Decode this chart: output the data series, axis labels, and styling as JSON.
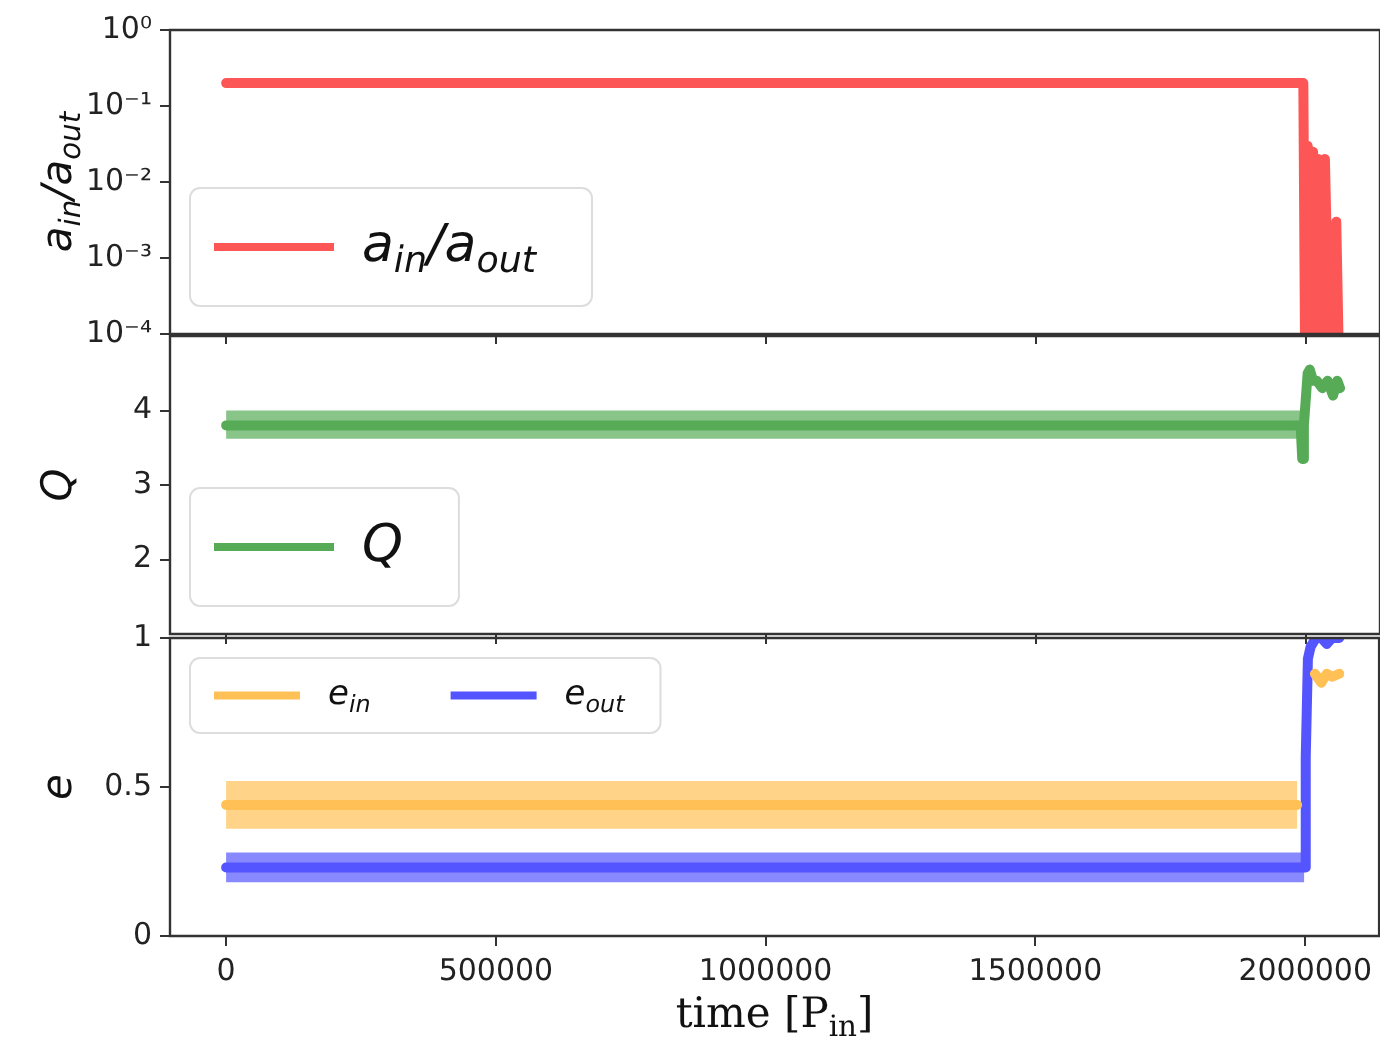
{
  "chart_data": [
    {
      "type": "line",
      "ylabel": "a$_{in}$/a$_{out}$",
      "log": true,
      "legend": "bottom left",
      "marker": "none",
      "tick_labels": "y",
      "xlim": [
        -104000,
        2137000
      ],
      "xticks": [
        0,
        500000,
        1000000,
        1500000,
        2000000
      ],
      "ylim": [
        0.0001,
        1
      ],
      "yticks": [
        {
          "value": 1,
          "label": "10⁰"
        },
        {
          "value": 0.1,
          "label": "10⁻¹"
        },
        {
          "value": 0.01,
          "label": "10⁻²"
        },
        {
          "value": 0.001,
          "label": "10⁻³"
        },
        {
          "value": 0.0001,
          "label": "10⁻⁴"
        }
      ],
      "series": [
        {
          "name": "a$_{in}$/a$_{out}$",
          "color": "#fd5656",
          "x": [
            0,
            1995000,
            1998000,
            2003000,
            2008000,
            2013000,
            2018000,
            2023000,
            2028000,
            2035000,
            2042000,
            2056000,
            2060000
          ],
          "values": [
            0.2,
            0.2,
            0.0001,
            0.03,
            0.0001,
            0.025,
            0.0001,
            0.02,
            0.0001,
            0.02,
            0.0001,
            0.003,
            0.0001
          ]
        }
      ]
    },
    {
      "type": "line",
      "ylabel": "Q",
      "legend": "bottom left",
      "marker": "none",
      "tick_labels": "y",
      "xlim": [
        -104000,
        2137000
      ],
      "xticks": [
        0,
        500000,
        1000000,
        1500000,
        2000000
      ],
      "ylim": [
        1,
        5
      ],
      "yticks": [
        2,
        3,
        4
      ],
      "series": [
        {
          "name": "Q",
          "color": "#57ab57",
          "x": [
            0,
            1990000,
            1993000,
            1996000,
            2003000,
            2007000,
            2013000,
            2020000,
            2030000,
            2040000,
            2050000,
            2058000,
            2063000
          ],
          "values": [
            3.8,
            3.8,
            3.35,
            3.8,
            4.5,
            4.55,
            4.4,
            4.4,
            4.3,
            4.4,
            4.2,
            4.4,
            4.3
          ],
          "lower": [
            3.62,
            3.62,
            null,
            null,
            null,
            null,
            null,
            null,
            null,
            null,
            null,
            null,
            null
          ],
          "upper": [
            4.0,
            4.0,
            null,
            null,
            null,
            null,
            null,
            null,
            null,
            null,
            null,
            null,
            null
          ]
        }
      ]
    },
    {
      "type": "line",
      "xlabel": "time [P$_{in}$]",
      "ylabel": "e",
      "legend": "top left",
      "marker": "none",
      "xlim": [
        -104000,
        2137000
      ],
      "xticks": [
        0,
        500000,
        1000000,
        1500000,
        2000000
      ],
      "ylim": [
        0,
        1
      ],
      "yticks": [
        0,
        0.5,
        1
      ],
      "series": [
        {
          "name": "e$_{in}$",
          "color": "#ffc156",
          "x": [
            0,
            1985000,
            2000000,
            2018000,
            2030000,
            2040000,
            2050000,
            2063000
          ],
          "values": [
            0.44,
            0.44,
            null,
            0.88,
            0.85,
            0.88,
            0.87,
            0.88
          ],
          "lower": [
            0.36,
            0.36,
            null,
            null,
            null,
            null,
            null,
            null
          ],
          "upper": [
            0.52,
            0.52,
            null,
            null,
            null,
            null,
            null,
            null
          ]
        },
        {
          "name": "e$_{out}$",
          "color": "#5555ff",
          "x": [
            0,
            1998000,
            2001000,
            2005000,
            2010000,
            2020000,
            2030000,
            2040000,
            2050000,
            2063000
          ],
          "values": [
            0.23,
            0.23,
            0.6,
            0.93,
            0.97,
            1,
            1,
            0.98,
            1,
            1
          ],
          "lower": [
            0.18,
            0.18,
            null,
            null,
            null,
            null,
            null,
            null,
            null,
            null
          ],
          "upper": [
            0.28,
            0.28,
            null,
            null,
            null,
            null,
            null,
            null,
            null,
            null
          ]
        }
      ]
    }
  ]
}
